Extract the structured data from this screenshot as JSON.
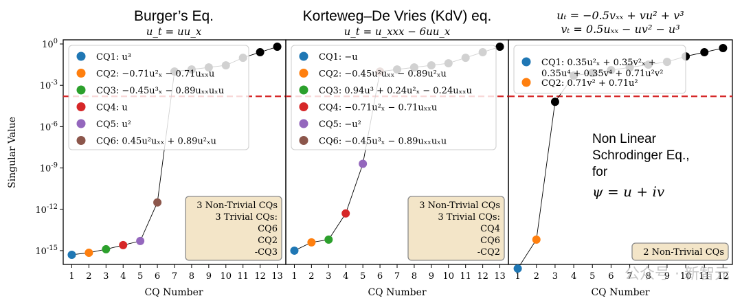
{
  "figure": {
    "ylabel": "Singular Value",
    "xlabel": "CQ Number",
    "watermark": "公众号 · 新智元"
  },
  "chart_data": [
    {
      "type": "scatter",
      "title": "Burger’s Eq.",
      "subtitle": "u_t = uu_x",
      "xlabel": "CQ Number",
      "ylabel": "Singular Value",
      "xlim": [
        0.5,
        13.5
      ],
      "ylim_log10": [
        -16,
        0.3
      ],
      "yscale": "log",
      "threshold_log10": -3.8,
      "xticks": [
        "1",
        "2",
        "3",
        "4",
        "5",
        "6",
        "7",
        "8",
        "9",
        "10",
        "11",
        "12",
        "13"
      ],
      "yticks": [
        "10^0",
        "10^-3",
        "10^-6",
        "10^-9",
        "10^-12",
        "10^-15"
      ],
      "x": [
        1,
        2,
        3,
        4,
        5,
        6,
        7,
        8,
        9,
        10,
        11,
        12,
        13
      ],
      "log10_values": [
        -15.3,
        -15.15,
        -14.9,
        -14.6,
        -14.3,
        -11.5,
        -2.0,
        -1.85,
        -1.7,
        -1.55,
        -1.0,
        -0.6,
        -0.2
      ],
      "legend": [
        {
          "label": "CQ1:",
          "expr": "u³"
        },
        {
          "label": "CQ2:",
          "expr": "−0.71u²ₓ − 0.71uₓₓu"
        },
        {
          "label": "CQ3:",
          "expr": "−0.45u³ₓ − 0.89uₓₓuₓu"
        },
        {
          "label": "CQ4:",
          "expr": "u"
        },
        {
          "label": "CQ5:",
          "expr": "u²"
        },
        {
          "label": "CQ6:",
          "expr": "0.45u²uₓₓ + 0.89u²ₓu"
        }
      ],
      "note": [
        "3 Non-Trivial CQs",
        "3 Trivial CQs:",
        "CQ6",
        "CQ2",
        "-CQ3"
      ]
    },
    {
      "type": "scatter",
      "title": "Korteweg–De Vries (KdV) eq.",
      "subtitle": "u_t = u_xxx − 6uu_x",
      "xlabel": "CQ Number",
      "xlim": [
        0.5,
        13.5
      ],
      "ylim_log10": [
        -16,
        0.3
      ],
      "yscale": "log",
      "threshold_log10": -3.8,
      "xticks": [
        "1",
        "2",
        "3",
        "4",
        "5",
        "6",
        "7",
        "8",
        "9",
        "10",
        "11",
        "12",
        "13"
      ],
      "x": [
        1,
        2,
        3,
        4,
        5,
        6,
        7,
        8,
        9,
        10,
        11,
        12,
        13
      ],
      "log10_values": [
        -15.0,
        -14.4,
        -14.2,
        -12.3,
        -8.7,
        -2.0,
        -1.85,
        -1.7,
        -1.55,
        -1.4,
        -1.0,
        -0.6,
        -0.2
      ],
      "legend": [
        {
          "label": "CQ1:",
          "expr": "−u"
        },
        {
          "label": "CQ2:",
          "expr": "−0.45u²uₓₓ − 0.89u²ₓu"
        },
        {
          "label": "CQ3:",
          "expr": "0.94u³ + 0.24u²ₓ − 0.24uₓₓu"
        },
        {
          "label": "CQ4:",
          "expr": "−0.71u²ₓ − 0.71uₓₓu"
        },
        {
          "label": "CQ5:",
          "expr": "−u²"
        },
        {
          "label": "CQ6:",
          "expr": "−0.45u³ₓ − 0.89uₓₓuₓu"
        }
      ],
      "note": [
        "3 Non-Trivial CQs",
        "3 Trivial CQs:",
        "CQ4",
        "CQ6",
        "-CQ2"
      ]
    },
    {
      "type": "scatter",
      "title_line1": "uₜ = −0.5vₓₓ + vu² + v³",
      "title_line2": "vₜ = 0.5uₓₓ − uv² − u³",
      "xlabel": "CQ Number",
      "xlim": [
        0.5,
        12.5
      ],
      "ylim_log10": [
        -16,
        0.3
      ],
      "yscale": "log",
      "threshold_log10": -3.8,
      "xticks": [
        "1",
        "2",
        "3",
        "4",
        "5",
        "6",
        "7",
        "8",
        "9",
        "10",
        "11",
        "12"
      ],
      "x": [
        1,
        2,
        3,
        4,
        5,
        6,
        7,
        8,
        9,
        10,
        11,
        12
      ],
      "log10_values": [
        -16.3,
        -14.2,
        -4.2,
        -2.3,
        -2.1,
        -1.9,
        -1.7,
        -1.5,
        -1.3,
        -0.9,
        -0.6,
        -0.3
      ],
      "legend": [
        {
          "label": "CQ1:",
          "expr": "0.35u²ₓ + 0.35v²ₓ +",
          "expr2": "0.35u⁴ + 0.35v⁴ + 0.71u²v²"
        },
        {
          "label": "CQ2:",
          "expr": "0.71v² + 0.71u²"
        }
      ],
      "annotation": [
        "Non Linear",
        "Schrodinger Eq.,",
        "for",
        "ψ = u + iv"
      ],
      "note": [
        "2 Non-Trivial CQs"
      ]
    }
  ],
  "colors": {
    "cq1": "#1f77b4",
    "cq2": "#ff7f0e",
    "cq3": "#2ca02c",
    "cq4": "#d62728",
    "cq5": "#9467bd",
    "cq6": "#8c564b",
    "trivial": "#000000",
    "threshold": "#d62728",
    "note_fill": "#f3e5c8",
    "note_stroke": "#8a8a8a"
  }
}
